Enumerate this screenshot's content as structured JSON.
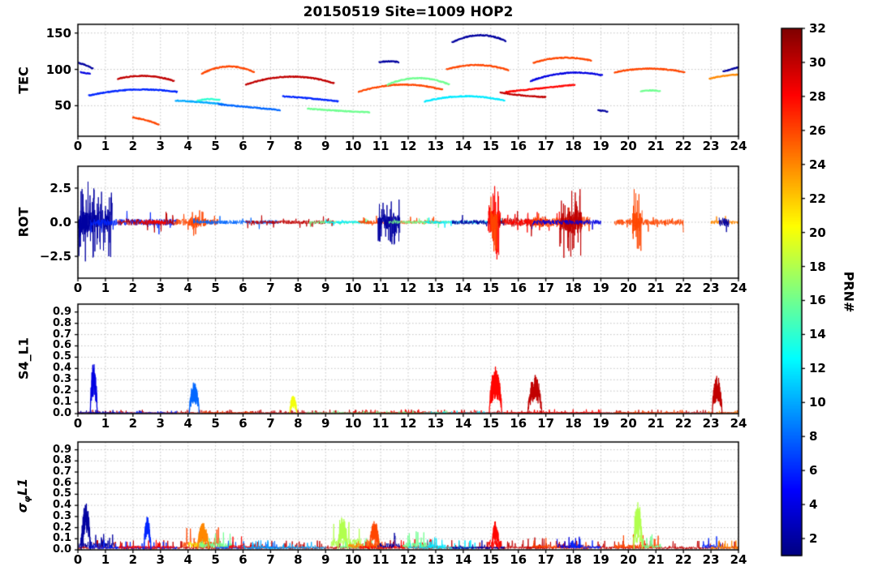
{
  "title": "20150519 Site=1009 HOP2",
  "xlim": [
    0,
    24
  ],
  "xtick_values": [
    0,
    1,
    2,
    3,
    4,
    5,
    6,
    7,
    8,
    9,
    10,
    11,
    12,
    13,
    14,
    15,
    16,
    17,
    18,
    19,
    20,
    21,
    22,
    23,
    24
  ],
  "xtick_labels": [
    "0",
    "1",
    "2",
    "3",
    "4",
    "5",
    "6",
    "7",
    "8",
    "9",
    "10",
    "11",
    "12",
    "13",
    "14",
    "15",
    "16",
    "17",
    "18",
    "19",
    "20",
    "21",
    "22",
    "23",
    "24"
  ],
  "colorbar": {
    "label": "PRN#",
    "colormap": "jet",
    "vmin": 1,
    "vmax": 32,
    "tick_values": [
      2,
      4,
      6,
      8,
      10,
      12,
      14,
      16,
      18,
      20,
      22,
      24,
      26,
      28,
      30,
      32
    ],
    "tick_labels": [
      "2",
      "4",
      "6",
      "8",
      "10",
      "12",
      "14",
      "16",
      "18",
      "20",
      "22",
      "24",
      "26",
      "28",
      "30",
      "32"
    ]
  },
  "chart_data": [
    {
      "type": "line",
      "name": "TEC",
      "ylabel_pre": "TEC",
      "ylabel_sub": "",
      "ylabel_post": "",
      "ylim": [
        8,
        162
      ],
      "ytick_values": [
        50,
        100,
        150
      ],
      "ytick_labels": [
        "50",
        "100",
        "150"
      ],
      "grid": true,
      "segments": [
        {
          "prn": 2,
          "t": [
            0.0,
            0.55
          ],
          "y": [
            109,
            106,
            101
          ]
        },
        {
          "prn": 4,
          "t": [
            0.1,
            0.45
          ],
          "y": [
            96,
            95,
            94
          ]
        },
        {
          "prn": 6,
          "t": [
            0.4,
            3.6
          ],
          "y": [
            64,
            72,
            69
          ]
        },
        {
          "prn": 30,
          "t": [
            1.45,
            3.5
          ],
          "y": [
            87,
            91,
            84
          ]
        },
        {
          "prn": 26,
          "t": [
            2.0,
            2.95
          ],
          "y": [
            34,
            30,
            24
          ]
        },
        {
          "prn": 10,
          "t": [
            3.55,
            5.3
          ],
          "y": [
            57,
            55,
            52
          ]
        },
        {
          "prn": 14,
          "t": [
            4.35,
            5.15
          ],
          "y": [
            57,
            59,
            58
          ]
        },
        {
          "prn": 26,
          "t": [
            4.5,
            6.4
          ],
          "y": [
            94,
            104,
            96
          ]
        },
        {
          "prn": 8,
          "t": [
            5.1,
            7.35
          ],
          "y": [
            52,
            48,
            44
          ]
        },
        {
          "prn": 30,
          "t": [
            6.1,
            9.3
          ],
          "y": [
            79,
            90,
            81
          ]
        },
        {
          "prn": 6,
          "t": [
            7.45,
            9.45
          ],
          "y": [
            63,
            60,
            56
          ]
        },
        {
          "prn": 16,
          "t": [
            8.35,
            10.6
          ],
          "y": [
            46,
            43,
            41
          ]
        },
        {
          "prn": 26,
          "t": [
            10.2,
            13.25
          ],
          "y": [
            69,
            79,
            72
          ]
        },
        {
          "prn": 2,
          "t": [
            10.95,
            11.65
          ],
          "y": [
            110,
            111,
            110
          ]
        },
        {
          "prn": 16,
          "t": [
            11.25,
            13.5
          ],
          "y": [
            79,
            88,
            79
          ]
        },
        {
          "prn": 12,
          "t": [
            12.6,
            15.5
          ],
          "y": [
            56,
            63,
            57
          ]
        },
        {
          "prn": 26,
          "t": [
            13.4,
            15.65
          ],
          "y": [
            100,
            106,
            99
          ]
        },
        {
          "prn": 2,
          "t": [
            13.6,
            15.55
          ],
          "y": [
            137,
            147,
            139
          ]
        },
        {
          "prn": 30,
          "t": [
            15.35,
            17.0
          ],
          "y": [
            68,
            64,
            62
          ]
        },
        {
          "prn": 28,
          "t": [
            15.55,
            18.05
          ],
          "y": [
            69,
            74,
            79
          ]
        },
        {
          "prn": 26,
          "t": [
            16.55,
            18.65
          ],
          "y": [
            109,
            116,
            112
          ]
        },
        {
          "prn": 4,
          "t": [
            16.45,
            19.05
          ],
          "y": [
            84,
            95,
            92
          ]
        },
        {
          "prn": 2,
          "t": [
            18.9,
            19.25
          ],
          "y": [
            44,
            43,
            42
          ]
        },
        {
          "prn": 26,
          "t": [
            19.5,
            22.05
          ],
          "y": [
            96,
            101,
            96
          ]
        },
        {
          "prn": 16,
          "t": [
            20.45,
            21.15
          ],
          "y": [
            70,
            71,
            70
          ]
        },
        {
          "prn": 24,
          "t": [
            22.95,
            24.0
          ],
          "y": [
            87,
            91,
            93
          ]
        },
        {
          "prn": 2,
          "t": [
            23.45,
            24.0
          ],
          "y": [
            97,
            100,
            103
          ]
        }
      ]
    },
    {
      "type": "line",
      "name": "ROT",
      "ylabel_pre": "ROT",
      "ylabel_sub": "",
      "ylabel_post": "",
      "ylim": [
        -4.1,
        4.1
      ],
      "ytick_values": [
        2.5,
        0.0,
        -2.5
      ],
      "ytick_labels": [
        "2.5",
        "0.0",
        "−2.5"
      ],
      "grid": true,
      "noise": [
        {
          "prn": 2,
          "t": [
            0.0,
            1.25
          ],
          "amp": 2.6
        },
        {
          "prn": 2,
          "t": [
            0.05,
            0.55
          ],
          "amp": 3.0
        },
        {
          "prn": 6,
          "t": [
            0.45,
            3.6
          ],
          "amp": 0.9
        },
        {
          "prn": 30,
          "t": [
            1.45,
            3.5
          ],
          "amp": 0.8
        },
        {
          "prn": 28,
          "t": [
            2.3,
            3.2
          ],
          "amp": 0.55
        },
        {
          "prn": 26,
          "t": [
            3.5,
            5.1
          ],
          "amp": 0.9
        },
        {
          "prn": 26,
          "t": [
            4.05,
            4.65
          ],
          "amp": 1.5
        },
        {
          "prn": 8,
          "t": [
            4.2,
            7.3
          ],
          "amp": 0.55
        },
        {
          "prn": 30,
          "t": [
            6.1,
            9.3
          ],
          "amp": 0.5
        },
        {
          "prn": 16,
          "t": [
            8.4,
            10.6
          ],
          "amp": 0.35
        },
        {
          "prn": 12,
          "t": [
            9.0,
            10.5
          ],
          "amp": 0.35
        },
        {
          "prn": 26,
          "t": [
            10.2,
            13.2
          ],
          "amp": 0.5
        },
        {
          "prn": 2,
          "t": [
            10.9,
            11.7
          ],
          "amp": 1.7
        },
        {
          "prn": 16,
          "t": [
            11.3,
            13.5
          ],
          "amp": 0.4
        },
        {
          "prn": 12,
          "t": [
            12.6,
            15.5
          ],
          "amp": 0.4
        },
        {
          "prn": 2,
          "t": [
            13.6,
            15.5
          ],
          "amp": 0.6
        },
        {
          "prn": 28,
          "t": [
            14.9,
            15.35
          ],
          "amp": 2.8
        },
        {
          "prn": 26,
          "t": [
            15.0,
            15.25
          ],
          "amp": 2.2
        },
        {
          "prn": 30,
          "t": [
            15.3,
            17.0
          ],
          "amp": 1.2
        },
        {
          "prn": 28,
          "t": [
            15.5,
            18.0
          ],
          "amp": 0.9
        },
        {
          "prn": 26,
          "t": [
            16.5,
            18.6
          ],
          "amp": 1.5
        },
        {
          "prn": 30,
          "t": [
            17.5,
            18.3
          ],
          "amp": 2.7
        },
        {
          "prn": 4,
          "t": [
            16.5,
            19.0
          ],
          "amp": 0.6
        },
        {
          "prn": 26,
          "t": [
            19.5,
            22.0
          ],
          "amp": 0.8
        },
        {
          "prn": 26,
          "t": [
            20.15,
            20.5
          ],
          "amp": 2.5
        },
        {
          "prn": 24,
          "t": [
            23.0,
            24.0
          ],
          "amp": 0.5
        },
        {
          "prn": 2,
          "t": [
            23.3,
            23.65
          ],
          "amp": 1.3
        }
      ]
    },
    {
      "type": "line",
      "name": "S4_L1",
      "ylabel_pre": "S4_L1",
      "ylabel_sub": "",
      "ylabel_post": "",
      "ylim": [
        0,
        0.97
      ],
      "positive": true,
      "ytick_values": [
        0.9,
        0.8,
        0.7,
        0.6,
        0.5,
        0.4,
        0.3,
        0.2,
        0.1,
        0.0
      ],
      "ytick_labels": [
        "0.9",
        "0.8",
        "0.7",
        "0.6",
        "0.5",
        "0.4",
        "0.3",
        "0.2",
        "0.1",
        "0.0"
      ],
      "grid": true,
      "noise": [
        {
          "prn": 30,
          "t": [
            0.0,
            24.0
          ],
          "amp": 0.02
        },
        {
          "prn": 28,
          "t": [
            10.0,
            19.0
          ],
          "amp": 0.022
        },
        {
          "prn": 6,
          "t": [
            0.4,
            3.6
          ],
          "amp": 0.015
        },
        {
          "prn": 26,
          "t": [
            4.5,
            6.4
          ],
          "amp": 0.015
        },
        {
          "prn": 16,
          "t": [
            8.3,
            13.5
          ],
          "amp": 0.015
        },
        {
          "prn": 12,
          "t": [
            12.6,
            15.5
          ],
          "amp": 0.015
        },
        {
          "prn": 26,
          "t": [
            19.5,
            22.0
          ],
          "amp": 0.018
        },
        {
          "prn": 24,
          "t": [
            22.9,
            24.0
          ],
          "amp": 0.015
        },
        {
          "prn": 2,
          "t": [
            0.0,
            1.3
          ],
          "amp": 0.02
        }
      ],
      "spikes": [
        {
          "prn": 4,
          "t": [
            0.45,
            0.7
          ],
          "peak": 0.45
        },
        {
          "prn": 8,
          "t": [
            4.05,
            4.4
          ],
          "peak": 0.28
        },
        {
          "prn": 20,
          "t": [
            7.7,
            7.95
          ],
          "peak": 0.17
        },
        {
          "prn": 28,
          "t": [
            14.95,
            15.4
          ],
          "peak": 0.42
        },
        {
          "prn": 30,
          "t": [
            16.35,
            16.85
          ],
          "peak": 0.34
        },
        {
          "prn": 30,
          "t": [
            23.05,
            23.4
          ],
          "peak": 0.34
        }
      ]
    },
    {
      "type": "line",
      "name": "sigma_phi_L1",
      "ylabel_pre": "σ",
      "ylabel_sub": "φ",
      "ylabel_post": "L1",
      "ylim": [
        0,
        0.97
      ],
      "positive": true,
      "ytick_values": [
        0.9,
        0.8,
        0.7,
        0.6,
        0.5,
        0.4,
        0.3,
        0.2,
        0.1,
        0.0
      ],
      "ytick_labels": [
        "0.9",
        "0.8",
        "0.7",
        "0.6",
        "0.5",
        "0.4",
        "0.3",
        "0.2",
        "0.1",
        "0.0"
      ],
      "grid": true,
      "noise": [
        {
          "prn": 30,
          "t": [
            0.0,
            24.0
          ],
          "amp": 0.05
        },
        {
          "prn": 2,
          "t": [
            0.0,
            1.3
          ],
          "amp": 0.1
        },
        {
          "prn": 6,
          "t": [
            0.4,
            3.6
          ],
          "amp": 0.05
        },
        {
          "prn": 28,
          "t": [
            1.5,
            3.5
          ],
          "amp": 0.06
        },
        {
          "prn": 26,
          "t": [
            3.8,
            5.2
          ],
          "amp": 0.12
        },
        {
          "prn": 20,
          "t": [
            4.0,
            4.6
          ],
          "amp": 0.12
        },
        {
          "prn": 16,
          "t": [
            4.4,
            5.6
          ],
          "amp": 0.1
        },
        {
          "prn": 8,
          "t": [
            5.0,
            7.3
          ],
          "amp": 0.05
        },
        {
          "prn": 28,
          "t": [
            5.5,
            6.8
          ],
          "amp": 0.07
        },
        {
          "prn": 10,
          "t": [
            6.0,
            9.0
          ],
          "amp": 0.05
        },
        {
          "prn": 18,
          "t": [
            9.2,
            10.3
          ],
          "amp": 0.16
        },
        {
          "prn": 16,
          "t": [
            9.5,
            11.0
          ],
          "amp": 0.07
        },
        {
          "prn": 24,
          "t": [
            9.8,
            11.0
          ],
          "amp": 0.09
        },
        {
          "prn": 28,
          "t": [
            10.2,
            13.2
          ],
          "amp": 0.06
        },
        {
          "prn": 26,
          "t": [
            10.5,
            11.1
          ],
          "amp": 0.13
        },
        {
          "prn": 2,
          "t": [
            10.9,
            11.7
          ],
          "amp": 0.1
        },
        {
          "prn": 16,
          "t": [
            11.8,
            12.7
          ],
          "amp": 0.11
        },
        {
          "prn": 12,
          "t": [
            12.0,
            14.5
          ],
          "amp": 0.05
        },
        {
          "prn": 12,
          "t": [
            12.7,
            13.4
          ],
          "amp": 0.08
        },
        {
          "prn": 2,
          "t": [
            13.6,
            15.5
          ],
          "amp": 0.05
        },
        {
          "prn": 28,
          "t": [
            14.9,
            15.4
          ],
          "amp": 0.14
        },
        {
          "prn": 30,
          "t": [
            16.3,
            17.1
          ],
          "amp": 0.07
        },
        {
          "prn": 26,
          "t": [
            16.5,
            18.6
          ],
          "amp": 0.07
        },
        {
          "prn": 4,
          "t": [
            17.4,
            18.3
          ],
          "amp": 0.09
        },
        {
          "prn": 6,
          "t": [
            17.9,
            19.0
          ],
          "amp": 0.06
        },
        {
          "prn": 26,
          "t": [
            19.5,
            21.1
          ],
          "amp": 0.08
        },
        {
          "prn": 18,
          "t": [
            20.15,
            20.55
          ],
          "amp": 0.22
        },
        {
          "prn": 16,
          "t": [
            20.5,
            21.2
          ],
          "amp": 0.08
        },
        {
          "prn": 6,
          "t": [
            22.7,
            23.4
          ],
          "amp": 0.08
        },
        {
          "prn": 24,
          "t": [
            23.0,
            24.0
          ],
          "amp": 0.05
        }
      ],
      "spikes": [
        {
          "prn": 2,
          "t": [
            0.12,
            0.45
          ],
          "peak": 0.42
        },
        {
          "prn": 6,
          "t": [
            2.4,
            2.65
          ],
          "peak": 0.3
        },
        {
          "prn": 24,
          "t": [
            4.35,
            4.75
          ],
          "peak": 0.24
        },
        {
          "prn": 18,
          "t": [
            9.45,
            9.8
          ],
          "peak": 0.3
        },
        {
          "prn": 26,
          "t": [
            10.6,
            10.95
          ],
          "peak": 0.26
        },
        {
          "prn": 28,
          "t": [
            15.05,
            15.3
          ],
          "peak": 0.27
        },
        {
          "prn": 18,
          "t": [
            20.2,
            20.5
          ],
          "peak": 0.44
        }
      ]
    }
  ]
}
